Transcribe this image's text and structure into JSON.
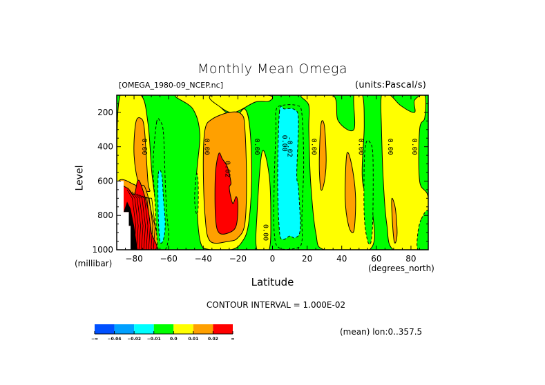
{
  "chart_data": {
    "type": "heatmap",
    "subtype": "filled-contour",
    "title": "Monthly Mean Omega",
    "subtitle_left": "[OMEGA_1980-09_NCEP.nc]",
    "subtitle_right": "(units:Pascal/s)",
    "xlabel": "Latitude",
    "xunit": "(degrees_north)",
    "ylabel": "Level",
    "yunit": "(millibar)",
    "xlim": [
      -90,
      90
    ],
    "ylim": [
      1000,
      100
    ],
    "y_reversed": true,
    "xticks": [
      -80,
      -60,
      -40,
      -20,
      0,
      20,
      40,
      60,
      80
    ],
    "xtick_labels": [
      "-80",
      "-60",
      "-40",
      "-20",
      "0",
      "20",
      "40",
      "60",
      "80"
    ],
    "yticks": [
      200,
      400,
      600,
      800,
      1000
    ],
    "ytick_labels": [
      "200",
      "400",
      "600",
      "800",
      "1000"
    ],
    "contour_interval": 0.01,
    "contour_interval_text": "CONTOUR INTERVAL = 1.000E-02",
    "footer_text": "(mean) lon:0..357.5",
    "background_level": "green",
    "colorbar": {
      "levels": [
        "-∞",
        "-0.04",
        "-0.02",
        "-0.01",
        "0.0",
        "0.01",
        "0.02",
        "∞"
      ],
      "bins": [
        {
          "range": "< -0.04",
          "color": "#0050ff"
        },
        {
          "range": "-0.04 to -0.02",
          "color": "#00a0ff"
        },
        {
          "range": "-0.02 to -0.01",
          "color": "#00ffff"
        },
        {
          "range": "-0.01 to 0.0",
          "color": "#00ff00"
        },
        {
          "range": "0.0 to 0.01",
          "color": "#ffff00"
        },
        {
          "range": "0.01 to 0.02",
          "color": "#ffa000"
        },
        {
          "range": "> 0.02",
          "color": "#ff0000"
        }
      ]
    },
    "contour_labels": [
      {
        "text": "0.00",
        "lat": -74,
        "level": 400
      },
      {
        "text": "0.00",
        "lat": -38,
        "level": 400
      },
      {
        "text": "0.00",
        "lat": -9,
        "level": 400
      },
      {
        "text": "0.02",
        "lat": -26,
        "level": 530
      },
      {
        "text": "0.00",
        "lat": -4,
        "level": 900
      },
      {
        "text": "0.00",
        "lat": 7,
        "level": 380
      },
      {
        "text": "-0.02",
        "lat": 10,
        "level": 400
      },
      {
        "text": "0.00",
        "lat": 24,
        "level": 400
      },
      {
        "text": "0.00",
        "lat": 51,
        "level": 400
      },
      {
        "text": "0.00",
        "lat": 68,
        "level": 400
      },
      {
        "text": "0.00",
        "lat": 82,
        "level": 400
      }
    ],
    "regions": [
      {
        "bin": 4,
        "dashed": false,
        "pts": [
          [
            -88,
            100
          ],
          [
            -76,
            100
          ],
          [
            -72,
            260
          ],
          [
            -70,
            520
          ],
          [
            -67,
            1000
          ],
          [
            -90,
            1000
          ],
          [
            -90,
            560
          ]
        ]
      },
      {
        "bin": 4,
        "dashed": false,
        "pts": [
          [
            -56,
            100
          ],
          [
            -35,
            100
          ],
          [
            -30,
            170
          ],
          [
            -22,
            230
          ],
          [
            -16,
            180
          ],
          [
            -13,
            300
          ],
          [
            -12,
            600
          ],
          [
            -14,
            860
          ],
          [
            -18,
            960
          ],
          [
            -24,
            1000
          ],
          [
            -36,
            1000
          ],
          [
            -42,
            940
          ],
          [
            -44,
            600
          ],
          [
            -42,
            330
          ],
          [
            -46,
            180
          ]
        ]
      },
      {
        "bin": 4,
        "dashed": false,
        "pts": [
          [
            -35,
            100
          ],
          [
            -3,
            100
          ],
          [
            -2,
            135
          ],
          [
            -10,
            140
          ],
          [
            -22,
            200
          ],
          [
            -30,
            170
          ]
        ]
      },
      {
        "bin": 4,
        "dashed": false,
        "pts": [
          [
            -6,
            430
          ],
          [
            -2,
            560
          ],
          [
            -1,
            800
          ],
          [
            -2,
            1000
          ],
          [
            -9,
            1000
          ],
          [
            -9,
            800
          ]
        ]
      },
      {
        "bin": 4,
        "dashed": false,
        "pts": [
          [
            17,
            100
          ],
          [
            35,
            100
          ],
          [
            38,
            250
          ],
          [
            47,
            300
          ],
          [
            47,
            100
          ],
          [
            52,
            100
          ],
          [
            53,
            280
          ],
          [
            52,
            600
          ],
          [
            58,
            800
          ],
          [
            56,
            1000
          ],
          [
            30,
            1000
          ],
          [
            25,
            900
          ],
          [
            22,
            600
          ],
          [
            21,
            300
          ],
          [
            21,
            160
          ]
        ]
      },
      {
        "bin": 4,
        "dashed": false,
        "pts": [
          [
            63,
            100
          ],
          [
            68,
            100
          ],
          [
            74,
            160
          ],
          [
            82,
            200
          ],
          [
            82,
            130
          ],
          [
            88,
            100
          ],
          [
            88,
            230
          ],
          [
            85,
            300
          ],
          [
            85,
            600
          ],
          [
            90,
            700
          ],
          [
            90,
            1000
          ],
          [
            70,
            1000
          ],
          [
            66,
            850
          ],
          [
            64,
            600
          ],
          [
            63,
            300
          ]
        ]
      },
      {
        "bin": 5,
        "dashed": false,
        "pts": [
          [
            -79,
            260
          ],
          [
            -76,
            235
          ],
          [
            -74,
            300
          ],
          [
            -72,
            600
          ],
          [
            -71,
            660
          ],
          [
            -77,
            620
          ],
          [
            -80,
            450
          ]
        ]
      },
      {
        "bin": 5,
        "dashed": false,
        "pts": [
          [
            -90,
            620
          ],
          [
            -80,
            620
          ],
          [
            -78,
            650
          ],
          [
            -74,
            630
          ],
          [
            -70,
            780
          ],
          [
            -67,
            1000
          ],
          [
            -90,
            1000
          ]
        ]
      },
      {
        "bin": 5,
        "dashed": false,
        "pts": [
          [
            -39,
            300
          ],
          [
            -35,
            240
          ],
          [
            -25,
            200
          ],
          [
            -18,
            210
          ],
          [
            -16,
            290
          ],
          [
            -15,
            600
          ],
          [
            -16,
            850
          ],
          [
            -20,
            930
          ],
          [
            -25,
            950
          ],
          [
            -36,
            950
          ],
          [
            -39,
            800
          ],
          [
            -40,
            500
          ]
        ]
      },
      {
        "bin": 5,
        "dashed": false,
        "pts": [
          [
            28,
            270
          ],
          [
            30,
            280
          ],
          [
            31,
            480
          ],
          [
            30,
            600
          ],
          [
            28,
            650
          ],
          [
            27,
            500
          ]
        ]
      },
      {
        "bin": 5,
        "dashed": false,
        "pts": [
          [
            43,
            440
          ],
          [
            46,
            520
          ],
          [
            48,
            700
          ],
          [
            47,
            890
          ],
          [
            44,
            860
          ],
          [
            42,
            700
          ]
        ]
      },
      {
        "bin": 5,
        "dashed": false,
        "pts": [
          [
            69,
            700
          ],
          [
            71,
            760
          ],
          [
            72,
            900
          ],
          [
            71,
            960
          ],
          [
            70,
            930
          ],
          [
            69,
            780
          ]
        ]
      },
      {
        "bin": 6,
        "dashed": false,
        "pts": [
          [
            -89,
            660
          ],
          [
            -84,
            640
          ],
          [
            -80,
            680
          ],
          [
            -78,
            600
          ],
          [
            -76,
            620
          ],
          [
            -72,
            760
          ],
          [
            -70,
            900
          ],
          [
            -68,
            1000
          ],
          [
            -90,
            1000
          ]
        ]
      },
      {
        "bin": 6,
        "dashed": false,
        "pts": [
          [
            -31,
            440
          ],
          [
            -29,
            470
          ],
          [
            -26,
            520
          ],
          [
            -24,
            610
          ],
          [
            -25,
            640
          ],
          [
            -23,
            730
          ],
          [
            -21,
            690
          ],
          [
            -20,
            740
          ],
          [
            -21,
            860
          ],
          [
            -25,
            900
          ],
          [
            -31,
            900
          ],
          [
            -33,
            800
          ],
          [
            -33,
            560
          ]
        ]
      },
      {
        "bin": 3,
        "dashed": true,
        "pts": [
          [
            -67,
            260
          ],
          [
            -65,
            250
          ],
          [
            -63,
            320
          ],
          [
            -62,
            600
          ],
          [
            -61,
            800
          ],
          [
            -60,
            920
          ],
          [
            -62,
            1000
          ],
          [
            -66,
            1000
          ],
          [
            -68,
            700
          ],
          [
            -69,
            500
          ]
        ]
      },
      {
        "bin": 3,
        "dashed": true,
        "pts": [
          [
            -44,
            560
          ],
          [
            -43,
            600
          ],
          [
            -43,
            760
          ],
          [
            -44,
            790
          ],
          [
            -45,
            700
          ]
        ]
      },
      {
        "bin": 3,
        "dashed": true,
        "pts": [
          [
            2,
            190
          ],
          [
            5,
            160
          ],
          [
            14,
            160
          ],
          [
            17,
            210
          ],
          [
            18,
            500
          ],
          [
            17,
            800
          ],
          [
            17,
            950
          ],
          [
            14,
            990
          ],
          [
            4,
            990
          ],
          [
            1,
            900
          ],
          [
            1,
            600
          ],
          [
            2,
            300
          ]
        ]
      },
      {
        "bin": 3,
        "dashed": true,
        "pts": [
          [
            54,
            380
          ],
          [
            56,
            370
          ],
          [
            58,
            450
          ],
          [
            58,
            800
          ],
          [
            57,
            950
          ],
          [
            55,
            950
          ],
          [
            53,
            800
          ],
          [
            53,
            500
          ]
        ]
      },
      {
        "bin": 3,
        "dashed": true,
        "pts": [
          [
            86,
            820
          ],
          [
            90,
            780
          ],
          [
            90,
            1000
          ],
          [
            84,
            1000
          ],
          [
            84,
            900
          ]
        ]
      },
      {
        "bin": 2,
        "dashed": true,
        "pts": [
          [
            -66,
            560
          ],
          [
            -64,
            560
          ],
          [
            -63,
            700
          ],
          [
            -62,
            850
          ],
          [
            -63,
            940
          ],
          [
            -65,
            950
          ],
          [
            -66,
            800
          ]
        ]
      },
      {
        "bin": 2,
        "dashed": true,
        "pts": [
          [
            4,
            200
          ],
          [
            7,
            180
          ],
          [
            13,
            185
          ],
          [
            15,
            250
          ],
          [
            14,
            560
          ],
          [
            15,
            640
          ],
          [
            16,
            880
          ],
          [
            13,
            930
          ],
          [
            10,
            920
          ],
          [
            6,
            940
          ],
          [
            4,
            890
          ],
          [
            3,
            600
          ]
        ]
      }
    ],
    "missing_regions": [
      {
        "color": "#ffffff",
        "pts": [
          [
            -90,
            600
          ],
          [
            -86,
            600
          ],
          [
            -86,
            780
          ],
          [
            -83,
            780
          ],
          [
            -83,
            860
          ],
          [
            -82,
            860
          ],
          [
            -82,
            1000
          ],
          [
            -90,
            1000
          ]
        ]
      },
      {
        "color": "#000000",
        "pts": [
          [
            -86,
            780
          ],
          [
            -84,
            720
          ],
          [
            -82,
            760
          ],
          [
            -80,
            860
          ],
          [
            -78,
            1000
          ],
          [
            -82,
            1000
          ],
          [
            -82,
            860
          ],
          [
            -83,
            860
          ],
          [
            -83,
            780
          ]
        ]
      }
    ]
  }
}
